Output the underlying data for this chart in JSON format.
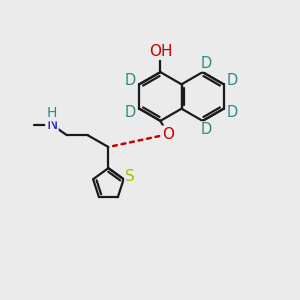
{
  "bg_color": "#ebebeb",
  "bond_color": "#1a1a1a",
  "bond_width": 1.6,
  "atom_colors": {
    "O": "#cc0000",
    "S": "#b8b800",
    "N": "#2222cc",
    "D": "#2e8b8b",
    "H_blue": "#2e8b8b",
    "C": "#1a1a1a"
  },
  "font_size": 10.5,
  "figsize": [
    3.0,
    3.0
  ],
  "dpi": 100
}
